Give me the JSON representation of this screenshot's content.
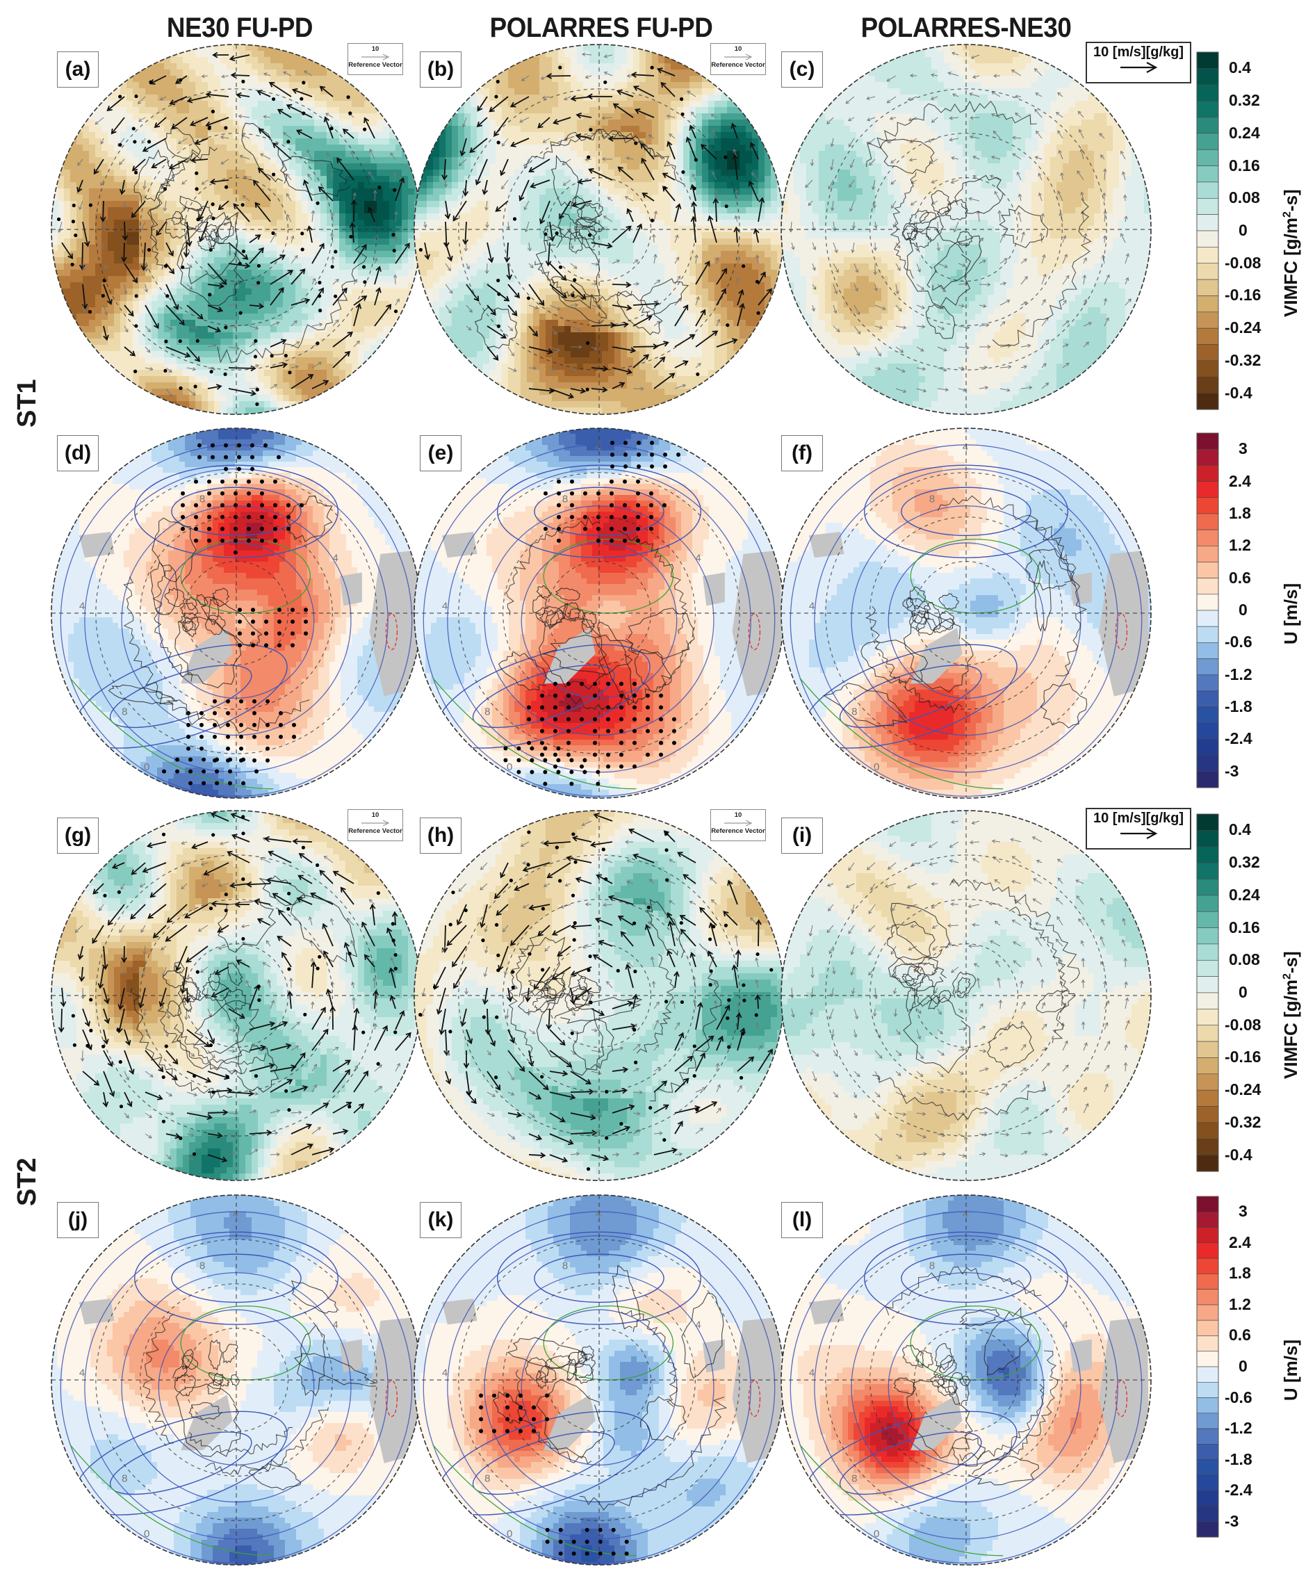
{
  "column_titles": [
    "NE30 FU-PD",
    "POLARRES FU-PD",
    "POLARRES-NE30"
  ],
  "row_labels": [
    "ST1",
    "ST2"
  ],
  "panels": [
    {
      "label": "(a)",
      "type": "vimfc",
      "row": 0,
      "col": 0,
      "seed": 11,
      "stipple": 0.22,
      "vectors": "strong"
    },
    {
      "label": "(b)",
      "type": "vimfc",
      "row": 0,
      "col": 1,
      "seed": 23,
      "stipple": 0.1,
      "vectors": "strong"
    },
    {
      "label": "(c)",
      "type": "vimfc",
      "row": 0,
      "col": 2,
      "seed": 37,
      "stipple": 0.0,
      "vectors": "weak"
    },
    {
      "label": "(d)",
      "type": "u",
      "row": 1,
      "col": 0,
      "seed": 41,
      "stipple": 1,
      "pattern": "d"
    },
    {
      "label": "(e)",
      "type": "u",
      "row": 1,
      "col": 1,
      "seed": 53,
      "stipple": 1,
      "pattern": "e"
    },
    {
      "label": "(f)",
      "type": "u",
      "row": 1,
      "col": 2,
      "seed": 67,
      "stipple": 0,
      "pattern": "f"
    },
    {
      "label": "(g)",
      "type": "vimfc",
      "row": 2,
      "col": 0,
      "seed": 71,
      "stipple": 0.12,
      "vectors": "strong"
    },
    {
      "label": "(h)",
      "type": "vimfc",
      "row": 2,
      "col": 1,
      "seed": 83,
      "stipple": 0.14,
      "vectors": "strong"
    },
    {
      "label": "(i)",
      "type": "vimfc",
      "row": 2,
      "col": 2,
      "seed": 97,
      "stipple": 0.0,
      "vectors": "weak"
    },
    {
      "label": "(j)",
      "type": "u",
      "row": 3,
      "col": 0,
      "seed": 101,
      "stipple": 0,
      "pattern": "j"
    },
    {
      "label": "(k)",
      "type": "u",
      "row": 3,
      "col": 1,
      "seed": 113,
      "stipple": 1,
      "pattern": "k"
    },
    {
      "label": "(l)",
      "type": "u",
      "row": 3,
      "col": 2,
      "seed": 127,
      "stipple": 0,
      "pattern": "l"
    }
  ],
  "reference_vector": {
    "value": "10",
    "label": "Reference Vector"
  },
  "difference_reference_vector": {
    "label": "10 [m/s][g/kg]"
  },
  "contour_labels": [
    "4",
    "8",
    "0"
  ],
  "chart_data": [
    {
      "type": "heatmap",
      "title": "VIMFC",
      "colorbar_label": "VIMFC [g/m²-s]",
      "colorbar_label_parts": {
        "main": "VIMFC [g/m",
        "sup": "2",
        "tail": "-s]"
      },
      "ticks": [
        "0.4",
        "0.32",
        "0.24",
        "0.16",
        "0.08",
        "0",
        "-0.08",
        "-0.16",
        "-0.24",
        "-0.32",
        "-0.4"
      ],
      "range": [
        -0.44,
        0.44
      ],
      "colors": [
        "#013a31",
        "#02544a",
        "#066459",
        "#117468",
        "#2a8a7c",
        "#45a293",
        "#64b8aa",
        "#86cbbf",
        "#a9dcd4",
        "#c7e8e3",
        "#e0eeee",
        "#f2efe4",
        "#f4e8c8",
        "#ecd9ac",
        "#e1c690",
        "#d3ae6f",
        "#c69456",
        "#b47a3c",
        "#9d622a",
        "#84501e",
        "#6a3e16",
        "#4e2b10"
      ]
    },
    {
      "type": "heatmap",
      "title": "U",
      "colorbar_label": "U [m/s]",
      "ticks": [
        "3",
        "2.4",
        "1.8",
        "1.2",
        "0.6",
        "0",
        "-0.6",
        "-1.2",
        "-1.8",
        "-2.4",
        "-3"
      ],
      "range": [
        -3.3,
        3.3
      ],
      "colors": [
        "#7d0f2f",
        "#a51a32",
        "#cc2129",
        "#ea2a2a",
        "#ee4634",
        "#f06a4e",
        "#f38a69",
        "#f7a887",
        "#fac6a5",
        "#fde0c9",
        "#fdf4ea",
        "#e1eef9",
        "#bcdcf4",
        "#92bde6",
        "#6f9bd2",
        "#5478be",
        "#3a5eab",
        "#2a52a3",
        "#25489c",
        "#223c8f",
        "#263683",
        "#2b2a6e"
      ]
    }
  ]
}
